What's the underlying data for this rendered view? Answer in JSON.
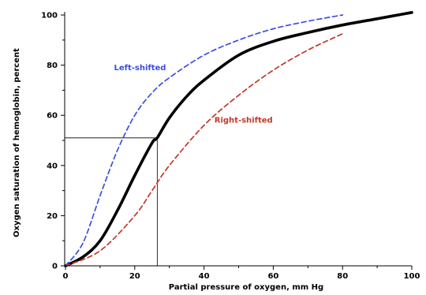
{
  "chart_data": {
    "type": "line",
    "title": "",
    "xlabel": "Partial pressure of oxygen, mm Hg",
    "ylabel": "Oxygen saturation of hemoglobin, percent",
    "xlim": [
      0,
      105
    ],
    "ylim": [
      0,
      102
    ],
    "xticks": [
      0,
      20,
      40,
      60,
      80,
      100
    ],
    "yticks": [
      0,
      20,
      40,
      60,
      80,
      100
    ],
    "grid": false,
    "legend": "none",
    "series": [
      {
        "name": "",
        "color": "#000000",
        "style": "solid",
        "points": [
          [
            0,
            0
          ],
          [
            5,
            3.5
          ],
          [
            10,
            10
          ],
          [
            15,
            22
          ],
          [
            20,
            36
          ],
          [
            25,
            49
          ],
          [
            26.5,
            51
          ],
          [
            30,
            59
          ],
          [
            35,
            67.5
          ],
          [
            40,
            74
          ],
          [
            50,
            84
          ],
          [
            60,
            89.5
          ],
          [
            70,
            93
          ],
          [
            80,
            96
          ],
          [
            90,
            98.5
          ],
          [
            100,
            101
          ]
        ]
      },
      {
        "name": "Left-shifted",
        "color": "#3b4fe0",
        "style": "dashed",
        "points": [
          [
            0,
            0
          ],
          [
            5,
            9
          ],
          [
            10,
            28
          ],
          [
            15,
            46
          ],
          [
            20,
            60
          ],
          [
            25,
            69
          ],
          [
            30,
            75
          ],
          [
            40,
            84
          ],
          [
            50,
            90
          ],
          [
            60,
            94.5
          ],
          [
            70,
            97.5
          ],
          [
            80,
            100
          ]
        ]
      },
      {
        "name": "Right-shifted",
        "color": "#c0392b",
        "style": "dashed",
        "points": [
          [
            0,
            0
          ],
          [
            10,
            6
          ],
          [
            20,
            20
          ],
          [
            25,
            30
          ],
          [
            30,
            40
          ],
          [
            40,
            56
          ],
          [
            50,
            68
          ],
          [
            60,
            78
          ],
          [
            70,
            86
          ],
          [
            80,
            92.5
          ]
        ]
      }
    ],
    "annotations": [
      {
        "text": "Left-shifted",
        "x": 14,
        "y": 78,
        "color": "#3b4fe0"
      },
      {
        "text": "Right-shifted",
        "x": 43,
        "y": 57,
        "color": "#c0392b"
      }
    ],
    "reference_lines": {
      "x": 26.5,
      "y": 51
    }
  }
}
